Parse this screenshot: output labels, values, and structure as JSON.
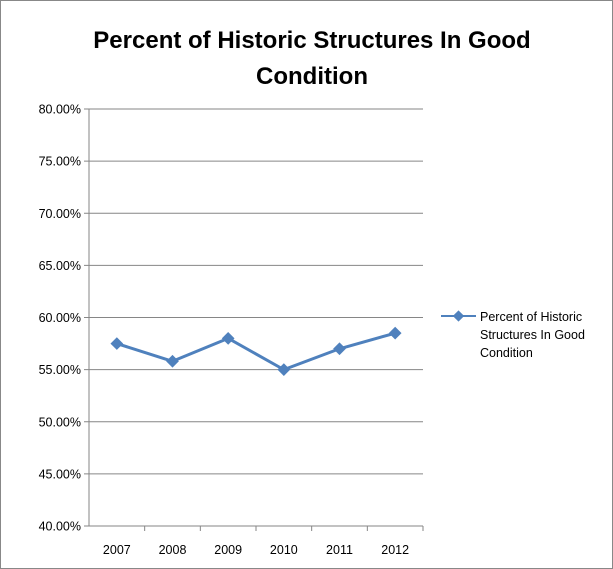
{
  "chart_data": {
    "type": "line",
    "title_lines": [
      "Percent of Historic Structures In Good",
      "Condition"
    ],
    "categories": [
      "2007",
      "2008",
      "2009",
      "2010",
      "2011",
      "2012"
    ],
    "series": [
      {
        "name_lines": [
          "Percent of Historic",
          "Structures In Good",
          "Condition"
        ],
        "values": [
          57.5,
          55.8,
          58.0,
          55.0,
          57.0,
          58.5
        ],
        "color": "#4F81BD"
      }
    ],
    "y_ticks": [
      "40.00%",
      "45.00%",
      "50.00%",
      "55.00%",
      "60.00%",
      "65.00%",
      "70.00%",
      "75.00%",
      "80.00%"
    ],
    "ylim": [
      40,
      80
    ],
    "grid": true,
    "legend_position": "right",
    "gridline_color": "#868686"
  }
}
